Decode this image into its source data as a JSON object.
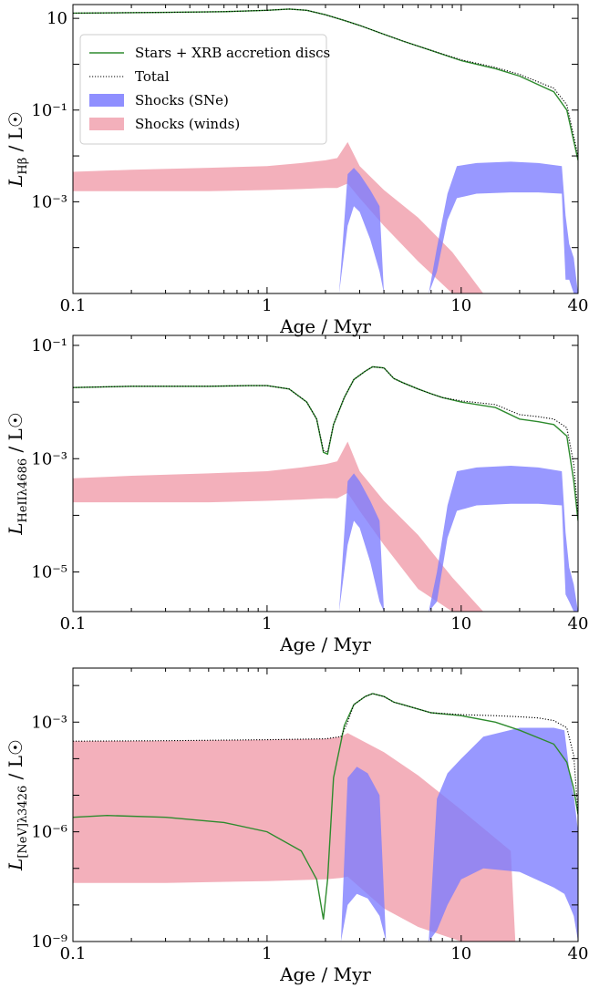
{
  "figure": {
    "description_note": ""
  },
  "colors": {
    "stars": "#2e8b2e",
    "total": "#000000",
    "sne_fill": "#7b7bff",
    "winds_fill": "#f2a7b4"
  },
  "chart_data": [
    {
      "type": "area",
      "xlabel": "Age / Myr",
      "ylabel": {
        "main": "L",
        "sub": "Hβ",
        "units": " / L☉"
      },
      "xscale": "log",
      "yscale": "log",
      "xlim": [
        0.1,
        40
      ],
      "ylim": [
        1e-05,
        20
      ],
      "xticks": [
        {
          "v": 0.1,
          "label": "0.1"
        },
        {
          "v": 1,
          "label": "1"
        },
        {
          "v": 10,
          "label": "10"
        },
        {
          "v": 40,
          "label": "40"
        }
      ],
      "yticks": [
        {
          "v": 10,
          "label": "10"
        },
        {
          "v": 0.1,
          "label": "10⁻¹"
        },
        {
          "v": 0.001,
          "label": "10⁻³"
        }
      ],
      "legend": {
        "placement": "upper-left",
        "entries": [
          {
            "label": "Stars + XRB accretion discs",
            "kind": "line",
            "color": "#2e8b2e"
          },
          {
            "label": "Total",
            "kind": "dotted",
            "color": "#000000"
          },
          {
            "label": "Shocks (SNe)",
            "kind": "patch",
            "color": "#7b7bff"
          },
          {
            "label": "Shocks (winds)",
            "kind": "patch",
            "color": "#f2a7b4"
          }
        ]
      },
      "series": [
        {
          "name": "Stars + XRB accretion discs",
          "style": "line",
          "color": "#2e8b2e",
          "x": [
            0.1,
            0.3,
            0.6,
            1.0,
            1.3,
            1.6,
            2.0,
            2.5,
            3.0,
            4.0,
            5.0,
            7.0,
            10.0,
            15.0,
            20.0,
            30.0,
            35.0,
            40.0
          ],
          "y": [
            13,
            13.5,
            14,
            15,
            16,
            15,
            12,
            9,
            7,
            4.5,
            3.2,
            2.0,
            1.2,
            0.8,
            0.55,
            0.25,
            0.1,
            0.008
          ]
        },
        {
          "name": "Total",
          "style": "dotted",
          "color": "#000000",
          "x": [
            0.1,
            0.3,
            0.6,
            1.0,
            1.3,
            1.6,
            2.0,
            2.5,
            3.0,
            4.0,
            5.0,
            7.0,
            10.0,
            15.0,
            20.0,
            30.0,
            35.0,
            40.0
          ],
          "y": [
            13,
            13.5,
            14,
            15,
            16,
            15,
            12,
            9,
            7,
            4.5,
            3.2,
            2.0,
            1.25,
            0.85,
            0.6,
            0.3,
            0.13,
            0.01
          ]
        },
        {
          "name": "Shocks (winds)",
          "style": "band",
          "color": "#f2a7b4",
          "x": [
            0.1,
            0.2,
            0.5,
            1.0,
            1.5,
            2.0,
            2.3,
            2.6,
            3.0,
            4.0,
            6.0,
            9.0,
            13.0
          ],
          "lo": [
            0.0017,
            0.0017,
            0.0017,
            0.0018,
            0.0019,
            0.002,
            0.002,
            0.0025,
            0.0012,
            0.0003,
            5e-05,
            1e-05,
            1e-05
          ],
          "hi": [
            0.0045,
            0.005,
            0.0055,
            0.006,
            0.007,
            0.008,
            0.009,
            0.02,
            0.006,
            0.0018,
            0.00045,
            8e-05,
            1e-05
          ]
        },
        {
          "name": "Shocks (SNe)",
          "style": "band",
          "color": "#7b7bff",
          "x": [
            2.35,
            2.6,
            2.8,
            3.0,
            3.4,
            3.8,
            4.0
          ],
          "lo": [
            1e-05,
            0.0003,
            0.0008,
            0.0006,
            0.00015,
            3e-05,
            1e-05
          ],
          "hi": [
            1e-05,
            0.004,
            0.0055,
            0.004,
            0.0018,
            0.0008,
            1e-05
          ]
        },
        {
          "name": "Shocks (SNe)",
          "style": "band",
          "color": "#7b7bff",
          "x": [
            6.8,
            7.5,
            8.5,
            9.5,
            12.0,
            18.0,
            25.0,
            33.0,
            34.5,
            36.0,
            38.0,
            40.0
          ],
          "lo": [
            1e-05,
            3e-05,
            0.0004,
            0.0012,
            0.0015,
            0.0016,
            0.0016,
            0.0015,
            2e-05,
            2e-05,
            1e-05,
            1e-05
          ],
          "hi": [
            1e-05,
            0.0001,
            0.0015,
            0.006,
            0.007,
            0.0075,
            0.007,
            0.006,
            0.0005,
            0.00012,
            6e-05,
            1e-05
          ]
        }
      ]
    },
    {
      "type": "area",
      "xlabel": "Age / Myr",
      "ylabel": {
        "main": "L",
        "sub": "HeIIλ4686",
        "units": " / L☉"
      },
      "xscale": "log",
      "yscale": "log",
      "xlim": [
        0.1,
        40
      ],
      "ylim": [
        2e-06,
        0.15
      ],
      "xticks": [
        {
          "v": 0.1,
          "label": "0.1"
        },
        {
          "v": 1,
          "label": "1"
        },
        {
          "v": 10,
          "label": "10"
        },
        {
          "v": 40,
          "label": "40"
        }
      ],
      "yticks": [
        {
          "v": 0.1,
          "label": "10⁻¹"
        },
        {
          "v": 0.001,
          "label": "10⁻³"
        },
        {
          "v": 1e-05,
          "label": "10⁻⁵"
        }
      ],
      "series": [
        {
          "name": "Stars + XRB accretion discs",
          "style": "line",
          "color": "#2e8b2e",
          "x": [
            0.1,
            0.2,
            0.5,
            0.8,
            1.0,
            1.3,
            1.6,
            1.8,
            1.95,
            2.05,
            2.2,
            2.5,
            2.8,
            3.2,
            3.5,
            4.0,
            4.5,
            5.0,
            6.0,
            7.0,
            8.0,
            10.0,
            15.0,
            20.0,
            25.0,
            30.0,
            35.0,
            38.0,
            40.0
          ],
          "y": [
            0.018,
            0.019,
            0.019,
            0.0195,
            0.0195,
            0.017,
            0.01,
            0.005,
            0.0013,
            0.0012,
            0.004,
            0.012,
            0.025,
            0.035,
            0.042,
            0.04,
            0.026,
            0.022,
            0.017,
            0.014,
            0.012,
            0.01,
            0.008,
            0.005,
            0.0045,
            0.004,
            0.0025,
            0.0004,
            8e-05
          ]
        },
        {
          "name": "Total",
          "style": "dotted",
          "color": "#000000",
          "x": [
            0.1,
            0.2,
            0.5,
            0.8,
            1.0,
            1.3,
            1.6,
            1.8,
            1.95,
            2.05,
            2.2,
            2.5,
            2.8,
            3.2,
            3.5,
            4.0,
            4.5,
            5.0,
            6.0,
            7.0,
            8.0,
            10.0,
            15.0,
            20.0,
            25.0,
            30.0,
            35.0,
            38.0,
            40.0
          ],
          "y": [
            0.018,
            0.019,
            0.019,
            0.0195,
            0.0195,
            0.017,
            0.01,
            0.005,
            0.0014,
            0.0013,
            0.004,
            0.012,
            0.025,
            0.035,
            0.042,
            0.04,
            0.026,
            0.022,
            0.017,
            0.014,
            0.012,
            0.0105,
            0.009,
            0.006,
            0.0055,
            0.005,
            0.0035,
            0.0008,
            0.0001
          ]
        },
        {
          "name": "Shocks (winds)",
          "style": "band",
          "color": "#f2a7b4",
          "x": [
            0.1,
            0.2,
            0.5,
            1.0,
            1.5,
            2.0,
            2.3,
            2.6,
            3.0,
            4.0,
            6.0,
            9.0,
            13.0
          ],
          "lo": [
            0.00017,
            0.00017,
            0.00017,
            0.00018,
            0.00019,
            0.0002,
            0.0002,
            0.00025,
            0.00012,
            3e-05,
            5e-06,
            2e-06,
            2e-06
          ],
          "hi": [
            0.00045,
            0.0005,
            0.00055,
            0.0006,
            0.0007,
            0.0008,
            0.0009,
            0.002,
            0.0006,
            0.00018,
            4.5e-05,
            8e-06,
            2e-06
          ]
        },
        {
          "name": "Shocks (SNe)",
          "style": "band",
          "color": "#7b7bff",
          "x": [
            2.35,
            2.6,
            2.8,
            3.0,
            3.4,
            3.8,
            4.0
          ],
          "lo": [
            2e-06,
            3e-05,
            8e-05,
            6e-05,
            1.5e-05,
            3e-06,
            2e-06
          ],
          "hi": [
            2e-06,
            0.0004,
            0.00055,
            0.0004,
            0.00018,
            8e-05,
            2e-06
          ]
        },
        {
          "name": "Shocks (SNe)",
          "style": "band",
          "color": "#7b7bff",
          "x": [
            6.8,
            7.5,
            8.5,
            9.5,
            12.0,
            18.0,
            25.0,
            33.0,
            34.5,
            36.0,
            38.0,
            40.0
          ],
          "lo": [
            2e-06,
            3e-06,
            4e-05,
            0.00012,
            0.00015,
            0.00016,
            0.00016,
            0.00015,
            4e-06,
            3e-06,
            2e-06,
            2e-06
          ],
          "hi": [
            2e-06,
            1e-05,
            0.00015,
            0.0006,
            0.0007,
            0.00075,
            0.0007,
            0.0006,
            5e-05,
            1.2e-05,
            6e-06,
            2e-06
          ]
        }
      ]
    },
    {
      "type": "area",
      "xlabel": "Age / Myr",
      "ylabel": {
        "main": "L",
        "sub": "[NeV]λ3426",
        "units": " / L☉"
      },
      "xscale": "log",
      "yscale": "log",
      "xlim": [
        0.1,
        40
      ],
      "ylim": [
        1e-09,
        0.03
      ],
      "xticks": [
        {
          "v": 0.1,
          "label": "0.1"
        },
        {
          "v": 1,
          "label": "1"
        },
        {
          "v": 10,
          "label": "10"
        },
        {
          "v": 40,
          "label": "40"
        }
      ],
      "yticks": [
        {
          "v": 0.001,
          "label": "10⁻³"
        },
        {
          "v": 1e-06,
          "label": "10⁻⁶"
        },
        {
          "v": 1e-09,
          "label": "10⁻⁹"
        }
      ],
      "series": [
        {
          "name": "Shocks (winds)",
          "style": "band",
          "color": "#f2a7b4",
          "x": [
            0.1,
            0.3,
            1.0,
            2.0,
            2.4,
            2.6,
            4.0,
            6.0,
            10.0,
            18.0,
            19.0
          ],
          "lo": [
            4e-08,
            4e-08,
            4.5e-08,
            5e-08,
            5.5e-08,
            6e-08,
            8e-09,
            2.5e-09,
            1e-09,
            1e-09,
            1e-09
          ],
          "hi": [
            0.0003,
            0.00031,
            0.00033,
            0.00035,
            0.0004,
            0.0005,
            0.00015,
            3.5e-05,
            4e-06,
            3e-07,
            1e-09
          ]
        },
        {
          "name": "Shocks (SNe)",
          "style": "band",
          "color": "#7b7bff",
          "x": [
            2.4,
            2.6,
            2.9,
            3.3,
            3.8,
            4.1
          ],
          "lo": [
            1e-09,
            1e-08,
            2e-08,
            1.5e-08,
            5e-09,
            1e-09
          ],
          "hi": [
            1e-09,
            3e-05,
            6e-05,
            4e-05,
            1e-05,
            1e-09
          ]
        },
        {
          "name": "Shocks (SNe)",
          "style": "band",
          "color": "#7b7bff",
          "x": [
            6.8,
            7.5,
            8.5,
            10.0,
            13.0,
            20.0,
            30.0,
            34.0,
            36.0,
            38.0,
            40.0
          ],
          "lo": [
            1e-09,
            2e-09,
            1e-08,
            5e-08,
            1e-07,
            8e-08,
            3e-08,
            2e-08,
            1e-08,
            5e-09,
            1e-09
          ],
          "hi": [
            1e-09,
            8e-06,
            4e-05,
            0.0001,
            0.0004,
            0.0007,
            0.0007,
            0.0006,
            5e-05,
            1e-05,
            1e-06
          ]
        },
        {
          "name": "Stars + XRB accretion discs",
          "style": "line",
          "color": "#2e8b2e",
          "x": [
            0.1,
            0.15,
            0.3,
            0.6,
            1.0,
            1.5,
            1.8,
            1.95,
            2.05,
            2.2,
            2.5,
            2.8,
            3.2,
            3.5,
            4.0,
            4.5,
            5.0,
            7.0,
            10.0,
            15.0,
            20.0,
            30.0,
            35.0,
            38.0,
            40.0
          ],
          "y": [
            2.5e-06,
            2.8e-06,
            2.5e-06,
            1.8e-06,
            1e-06,
            3e-07,
            5e-08,
            4e-09,
            5e-08,
            3e-05,
            0.0008,
            0.003,
            0.005,
            0.006,
            0.005,
            0.0035,
            0.003,
            0.0018,
            0.0015,
            0.001,
            0.0006,
            0.00025,
            8e-05,
            1.5e-05,
            3e-06
          ]
        },
        {
          "name": "Total",
          "style": "dotted",
          "color": "#000000",
          "x": [
            0.1,
            0.3,
            1.0,
            2.0,
            2.4,
            2.6,
            2.8,
            3.2,
            3.5,
            4.0,
            4.5,
            5.0,
            7.0,
            10.0,
            15.0,
            20.0,
            25.0,
            30.0,
            35.0,
            38.0,
            40.0
          ],
          "y": [
            0.0003,
            0.00031,
            0.00033,
            0.00035,
            0.0004,
            0.001,
            0.003,
            0.005,
            0.006,
            0.005,
            0.0035,
            0.003,
            0.0018,
            0.0016,
            0.0015,
            0.0014,
            0.0013,
            0.0011,
            0.0007,
            0.00012,
            3e-06
          ]
        }
      ]
    }
  ]
}
